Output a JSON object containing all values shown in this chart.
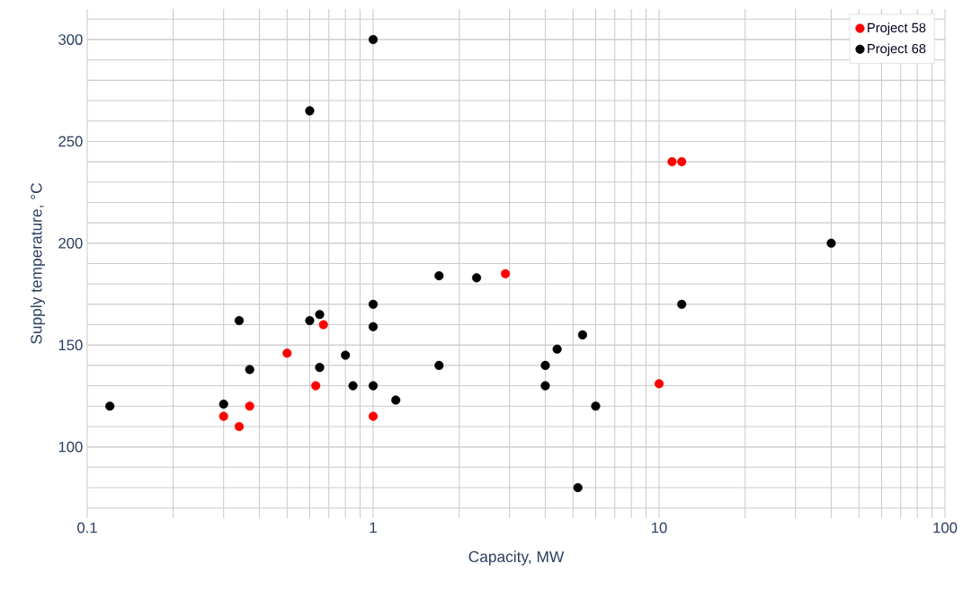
{
  "chart_data": {
    "type": "scatter",
    "xlabel": "Capacity, MW",
    "ylabel": "Supply temperature, °C",
    "log": "x",
    "xlim": [
      0.1,
      100
    ],
    "ylim": [
      65,
      315
    ],
    "xticks": [
      0.1,
      1,
      10,
      100
    ],
    "yticks": [
      100,
      150,
      200,
      250,
      300
    ],
    "grid": true,
    "legend": "top right",
    "marker": "circle",
    "series": [
      {
        "name": "Project 58",
        "color": "#ff0000",
        "x": [
          0.3,
          0.34,
          0.37,
          0.5,
          0.63,
          0.67,
          1,
          2.9,
          10,
          11.1,
          12
        ],
        "values": [
          115,
          110,
          120,
          146,
          130,
          160,
          115,
          185,
          131,
          240,
          240
        ]
      },
      {
        "name": "Project 68",
        "color": "#000000",
        "x": [
          0.12,
          0.3,
          0.34,
          0.37,
          0.6,
          0.6,
          0.65,
          0.65,
          0.8,
          0.85,
          1,
          1,
          1,
          1,
          1.2,
          1.7,
          1.7,
          2.3,
          4,
          4,
          4.4,
          5.2,
          5.4,
          6,
          12,
          40
        ],
        "values": [
          120,
          121,
          162,
          138,
          265,
          162,
          165,
          139,
          145,
          130,
          300,
          170,
          159,
          130,
          123,
          140,
          184,
          183,
          140,
          130,
          148,
          80,
          155,
          120,
          170,
          200
        ]
      }
    ]
  }
}
